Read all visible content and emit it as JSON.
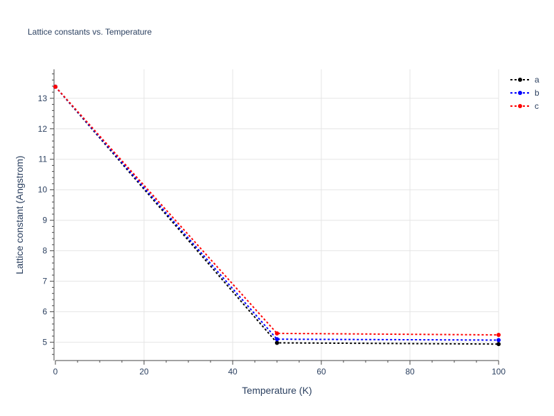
{
  "chart_data": {
    "type": "line",
    "title": "Lattice constants vs. Temperature",
    "xlabel": "Temperature (K)",
    "ylabel": "Lattice constant (Angstrom)",
    "xlim": [
      0,
      100
    ],
    "ylim": [
      4.4,
      13.95
    ],
    "x_ticks": [
      0,
      20,
      40,
      60,
      80,
      100
    ],
    "y_ticks": [
      5,
      6,
      7,
      8,
      9,
      10,
      11,
      12,
      13
    ],
    "grid": true,
    "legend_position": "top-right",
    "series": [
      {
        "name": "a",
        "color": "#000000",
        "x": [
          0,
          50,
          100
        ],
        "values": [
          13.38,
          4.98,
          4.94
        ]
      },
      {
        "name": "b",
        "color": "#0000ff",
        "x": [
          0,
          50,
          100
        ],
        "values": [
          13.38,
          5.1,
          5.07
        ]
      },
      {
        "name": "c",
        "color": "#ff0000",
        "x": [
          0,
          50,
          100
        ],
        "values": [
          13.38,
          5.29,
          5.24
        ]
      }
    ]
  }
}
